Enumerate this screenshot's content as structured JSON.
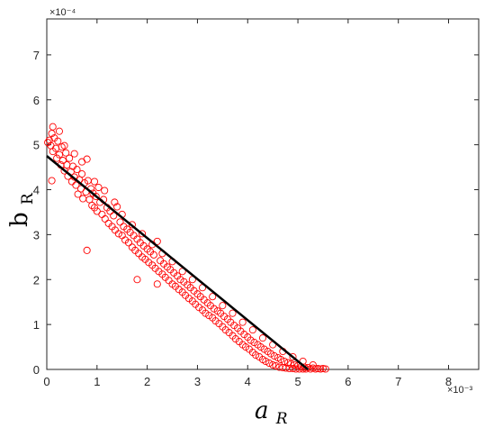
{
  "chart_data": {
    "type": "scatter",
    "xlabel": {
      "main": "a",
      "sub": "R"
    },
    "ylabel": {
      "main": "b",
      "sub": "R"
    },
    "x_exponent": "×10⁻³",
    "y_exponent": "×10⁻⁴",
    "xlim": [
      0,
      0.0086
    ],
    "ylim": [
      0,
      0.00078
    ],
    "x_ticks": [
      0,
      0.001,
      0.002,
      0.003,
      0.004,
      0.005,
      0.006,
      0.007,
      0.008
    ],
    "x_tick_labels": [
      "0",
      "1",
      "2",
      "3",
      "4",
      "5",
      "6",
      "7",
      "8"
    ],
    "y_ticks": [
      0,
      0.0001,
      0.0002,
      0.0003,
      0.0004,
      0.0005,
      0.0006,
      0.0007
    ],
    "y_tick_labels": [
      "0",
      "1",
      "2",
      "3",
      "4",
      "5",
      "6",
      "7"
    ],
    "grid": false,
    "legend": "none",
    "colors": {
      "points": "#ff0000",
      "fit_line": "#000000",
      "axes": "#262626"
    },
    "fit_line": {
      "x": [
        0,
        0.0052
      ],
      "y": [
        0.000475,
        0.0
      ]
    },
    "outliers": [
      {
        "x": 0.0008,
        "y": 0.000265
      },
      {
        "x": 0.0018,
        "y": 0.0002
      },
      {
        "x": 0.0022,
        "y": 0.00019
      },
      {
        "x": 0.0001,
        "y": 0.00042
      }
    ],
    "points": [
      [
        2e-05,
        0.000505
      ],
      [
        5e-05,
        0.00051
      ],
      [
        8e-05,
        0.000498
      ],
      [
        0.0001,
        0.000525
      ],
      [
        0.00012,
        0.000485
      ],
      [
        0.00015,
        0.000515
      ],
      [
        0.00018,
        0.000492
      ],
      [
        0.0002,
        0.00047
      ],
      [
        0.00022,
        0.000508
      ],
      [
        0.00025,
        0.000478
      ],
      [
        0.00028,
        0.000455
      ],
      [
        0.0003,
        0.000495
      ],
      [
        0.00032,
        0.000465
      ],
      [
        0.00035,
        0.000442
      ],
      [
        0.00038,
        0.000482
      ],
      [
        0.0004,
        0.000455
      ],
      [
        0.00042,
        0.00043
      ],
      [
        0.00045,
        0.00047
      ],
      [
        0.00048,
        0.00044
      ],
      [
        0.0005,
        0.000418
      ],
      [
        0.00052,
        0.000452
      ],
      [
        0.00055,
        0.000428
      ],
      [
        0.00058,
        0.00041
      ],
      [
        0.0006,
        0.000445
      ],
      [
        0.00062,
        0.00039
      ],
      [
        0.00065,
        0.000422
      ],
      [
        0.00068,
        0.000402
      ],
      [
        0.0007,
        0.000435
      ],
      [
        0.00072,
        0.00038
      ],
      [
        0.00075,
        0.000415
      ],
      [
        0.00078,
        0.000395
      ],
      [
        0.0008,
        0.000468
      ],
      [
        0.00082,
        0.00042
      ],
      [
        0.00085,
        0.000378
      ],
      [
        0.00088,
        0.000402
      ],
      [
        0.0009,
        0.000365
      ],
      [
        0.00092,
        0.000392
      ],
      [
        0.00095,
        0.00036
      ],
      [
        0.00098,
        0.000385
      ],
      [
        0.001,
        0.000352
      ],
      [
        0.00103,
        0.000405
      ],
      [
        0.00106,
        0.000372
      ],
      [
        0.0011,
        0.000345
      ],
      [
        0.00113,
        0.000378
      ],
      [
        0.00116,
        0.000335
      ],
      [
        0.0012,
        0.00036
      ],
      [
        0.00123,
        0.000325
      ],
      [
        0.00126,
        0.000352
      ],
      [
        0.0013,
        0.000318
      ],
      [
        0.00133,
        0.000342
      ],
      [
        0.00136,
        0.00031
      ],
      [
        0.0014,
        0.000362
      ],
      [
        0.00143,
        0.000302
      ],
      [
        0.00146,
        0.000328
      ],
      [
        0.0015,
        0.000298
      ],
      [
        0.00153,
        0.000318
      ],
      [
        0.00156,
        0.000288
      ],
      [
        0.0016,
        0.000312
      ],
      [
        0.00163,
        0.000282
      ],
      [
        0.00166,
        0.000305
      ],
      [
        0.0017,
        0.000272
      ],
      [
        0.00173,
        0.000298
      ],
      [
        0.00176,
        0.000265
      ],
      [
        0.0018,
        0.00029
      ],
      [
        0.00183,
        0.000258
      ],
      [
        0.00186,
        0.000282
      ],
      [
        0.0019,
        0.00025
      ],
      [
        0.00193,
        0.000275
      ],
      [
        0.00196,
        0.000245
      ],
      [
        0.002,
        0.000268
      ],
      [
        0.00203,
        0.000238
      ],
      [
        0.00206,
        0.000262
      ],
      [
        0.0021,
        0.000232
      ],
      [
        0.00213,
        0.000255
      ],
      [
        0.00216,
        0.000225
      ],
      [
        0.0022,
        0.000285
      ],
      [
        0.00223,
        0.000218
      ],
      [
        0.00226,
        0.000242
      ],
      [
        0.0023,
        0.000212
      ],
      [
        0.00233,
        0.000235
      ],
      [
        0.00236,
        0.000205
      ],
      [
        0.0024,
        0.000228
      ],
      [
        0.00243,
        0.000198
      ],
      [
        0.00246,
        0.000222
      ],
      [
        0.0025,
        0.00019
      ],
      [
        0.00253,
        0.000215
      ],
      [
        0.00256,
        0.000185
      ],
      [
        0.0026,
        0.000208
      ],
      [
        0.00263,
        0.000178
      ],
      [
        0.00266,
        0.0002
      ],
      [
        0.0027,
        0.000172
      ],
      [
        0.00273,
        0.000195
      ],
      [
        0.00276,
        0.000165
      ],
      [
        0.0028,
        0.000188
      ],
      [
        0.00283,
        0.000158
      ],
      [
        0.00286,
        0.000182
      ],
      [
        0.0029,
        0.000152
      ],
      [
        0.00293,
        0.000175
      ],
      [
        0.00296,
        0.000145
      ],
      [
        0.003,
        0.000168
      ],
      [
        0.00303,
        0.000138
      ],
      [
        0.00306,
        0.000162
      ],
      [
        0.0031,
        0.000132
      ],
      [
        0.00313,
        0.000155
      ],
      [
        0.00316,
        0.000125
      ],
      [
        0.0032,
        0.000148
      ],
      [
        0.00323,
        0.00012
      ],
      [
        0.00326,
        0.000142
      ],
      [
        0.0033,
        0.000115
      ],
      [
        0.00333,
        0.000135
      ],
      [
        0.00336,
        0.000108
      ],
      [
        0.0034,
        0.00013
      ],
      [
        0.00343,
        0.000102
      ],
      [
        0.00346,
        0.000125
      ],
      [
        0.0035,
        9.5e-05
      ],
      [
        0.00353,
        0.000118
      ],
      [
        0.00356,
        8.8e-05
      ],
      [
        0.0036,
        0.000112
      ],
      [
        0.00363,
        8.2e-05
      ],
      [
        0.00366,
        0.000105
      ],
      [
        0.0037,
        7.5e-05
      ],
      [
        0.00373,
        9.8e-05
      ],
      [
        0.00376,
        6.8e-05
      ],
      [
        0.0038,
        9.2e-05
      ],
      [
        0.00383,
        6.2e-05
      ],
      [
        0.00386,
        8.5e-05
      ],
      [
        0.0039,
        5.5e-05
      ],
      [
        0.00393,
        7.8e-05
      ],
      [
        0.00396,
        5e-05
      ],
      [
        0.004,
        7.2e-05
      ],
      [
        0.00403,
        4.5e-05
      ],
      [
        0.00406,
        6.5e-05
      ],
      [
        0.0041,
        3.8e-05
      ],
      [
        0.00413,
        6e-05
      ],
      [
        0.00416,
        3.2e-05
      ],
      [
        0.0042,
        5.5e-05
      ],
      [
        0.00423,
        2.8e-05
      ],
      [
        0.00426,
        5e-05
      ],
      [
        0.0043,
        2.2e-05
      ],
      [
        0.00433,
        4.5e-05
      ],
      [
        0.00436,
        1.8e-05
      ],
      [
        0.0044,
        4e-05
      ],
      [
        0.00443,
        1.4e-05
      ],
      [
        0.00446,
        3.5e-05
      ],
      [
        0.0045,
        1e-05
      ],
      [
        0.00453,
        3e-05
      ],
      [
        0.00456,
        8e-06
      ],
      [
        0.0046,
        2.6e-05
      ],
      [
        0.00463,
        5e-06
      ],
      [
        0.00466,
        2.2e-05
      ],
      [
        0.0047,
        4e-06
      ],
      [
        0.00473,
        1.8e-05
      ],
      [
        0.00476,
        3e-06
      ],
      [
        0.0048,
        1.5e-05
      ],
      [
        0.00483,
        2e-06
      ],
      [
        0.00486,
        1.2e-05
      ],
      [
        0.0049,
        2e-06
      ],
      [
        0.00493,
        1e-05
      ],
      [
        0.00496,
        1e-06
      ],
      [
        0.005,
        8e-06
      ],
      [
        0.00503,
        1e-06
      ],
      [
        0.00506,
        6e-06
      ],
      [
        0.0051,
        1e-06
      ],
      [
        0.00513,
        5e-06
      ],
      [
        0.00516,
        1e-06
      ],
      [
        0.0052,
        4e-06
      ],
      [
        0.00525,
        1e-06
      ],
      [
        0.0053,
        3e-06
      ],
      [
        0.00535,
        1e-06
      ],
      [
        0.0054,
        2e-06
      ],
      [
        0.00545,
        1e-06
      ],
      [
        0.0055,
        2e-06
      ],
      [
        0.00555,
        1e-06
      ],
      [
        0.00012,
        0.00054
      ],
      [
        0.00025,
        0.00053
      ],
      [
        0.00035,
        0.000498
      ],
      [
        0.00055,
        0.00048
      ],
      [
        0.0007,
        0.000462
      ],
      [
        0.00095,
        0.000418
      ],
      [
        0.00115,
        0.000398
      ],
      [
        0.00135,
        0.000372
      ],
      [
        0.0015,
        0.000345
      ],
      [
        0.0017,
        0.000322
      ],
      [
        0.0019,
        0.000302
      ],
      [
        0.0021,
        0.000278
      ],
      [
        0.0023,
        0.000258
      ],
      [
        0.0025,
        0.00024
      ],
      [
        0.0027,
        0.000218
      ],
      [
        0.0029,
        0.0002
      ],
      [
        0.0031,
        0.000182
      ],
      [
        0.0033,
        0.000162
      ],
      [
        0.0035,
        0.000142
      ],
      [
        0.0037,
        0.000125
      ],
      [
        0.0039,
        0.000105
      ],
      [
        0.0041,
        8.8e-05
      ],
      [
        0.0043,
        7e-05
      ],
      [
        0.0045,
        5.5e-05
      ],
      [
        0.0047,
        4e-05
      ],
      [
        0.0049,
        2.8e-05
      ],
      [
        0.0051,
        1.8e-05
      ],
      [
        0.0053,
        1e-05
      ]
    ]
  }
}
